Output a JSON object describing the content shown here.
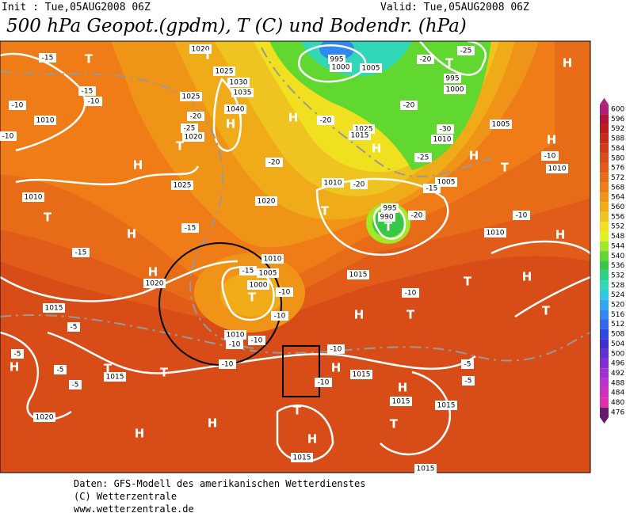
{
  "header": {
    "init": "Init : Tue,05AUG2008 06Z",
    "valid": "Valid: Tue,05AUG2008 06Z",
    "title": "500 hPa Geopot.(gpdm), T (C) und Bodendr. (hPa)"
  },
  "colorbar": [
    {
      "label": 600,
      "color": "#b0207a"
    },
    {
      "label": 596,
      "color": "#b01438"
    },
    {
      "label": 592,
      "color": "#c01c1c"
    },
    {
      "label": 588,
      "color": "#c82c18"
    },
    {
      "label": 584,
      "color": "#d03c18"
    },
    {
      "label": 580,
      "color": "#d84c18"
    },
    {
      "label": 576,
      "color": "#e05c18"
    },
    {
      "label": 572,
      "color": "#e86c18"
    },
    {
      "label": 568,
      "color": "#f07c18"
    },
    {
      "label": 564,
      "color": "#f09418"
    },
    {
      "label": 560,
      "color": "#f0ac18"
    },
    {
      "label": 556,
      "color": "#f0c420"
    },
    {
      "label": 552,
      "color": "#f0e020"
    },
    {
      "label": 548,
      "color": "#e0f020"
    },
    {
      "label": 544,
      "color": "#a0e828"
    },
    {
      "label": 540,
      "color": "#60d830"
    },
    {
      "label": 536,
      "color": "#38c848"
    },
    {
      "label": 532,
      "color": "#30d088"
    },
    {
      "label": 528,
      "color": "#30d8b8"
    },
    {
      "label": 524,
      "color": "#30c8e0"
    },
    {
      "label": 520,
      "color": "#30a8f0"
    },
    {
      "label": 516,
      "color": "#3088f0"
    },
    {
      "label": 512,
      "color": "#3068f0"
    },
    {
      "label": 508,
      "color": "#3048e0"
    },
    {
      "label": 504,
      "color": "#4030d0"
    },
    {
      "label": 500,
      "color": "#6030d0"
    },
    {
      "label": 496,
      "color": "#8030d0"
    },
    {
      "label": 492,
      "color": "#a030d0"
    },
    {
      "label": 488,
      "color": "#c030d0"
    },
    {
      "label": 484,
      "color": "#d030c0"
    },
    {
      "label": 480,
      "color": "#e030b0"
    },
    {
      "label": 476,
      "color": "#6a1a6a"
    }
  ],
  "map_labels": [
    "-15",
    "T",
    "1020",
    "T",
    "-15",
    "-10",
    "-10",
    "1010",
    "-10",
    "1025",
    "1030",
    "1035",
    "1025",
    "-20",
    "1040",
    "H",
    "-25",
    "1020",
    "T",
    "H",
    "1025",
    "-20",
    "H",
    "-20",
    "1025",
    "1015",
    "H",
    "995",
    "1000",
    "1005",
    "-20",
    "T",
    "-25",
    "995",
    "1000",
    "H",
    "-20",
    "1005",
    "-30",
    "1010",
    "H",
    "T",
    "-25",
    "H",
    "-10",
    "1010",
    "1010",
    "T",
    "1010",
    "-20",
    "1005",
    "-15",
    "T",
    "995",
    "990",
    "T",
    "-20",
    "1020",
    "-10",
    "-15",
    "H",
    "1010",
    "H",
    "-15",
    "H",
    "1020",
    "1010",
    "1005",
    "1000",
    "T",
    "-15",
    "-10",
    "1015",
    "H",
    "T",
    "-10",
    "T",
    "1015",
    "H",
    "T",
    "-10",
    "1010",
    "-10",
    "-10",
    "-5",
    "-5",
    "-10",
    "H",
    "1015",
    "1015",
    "T",
    "-5",
    "T",
    "-10",
    "-5",
    "-10",
    "H",
    "-5",
    "-5",
    "H",
    "1015",
    "T",
    "1015",
    "1020",
    "H",
    "T",
    "H",
    "H",
    "1015",
    "1015"
  ],
  "footer": [
    "Daten: GFS-Modell des amerikanischen Wetterdienstes",
    "(C) Wetterzentrale",
    "www.wetterzentrale.de"
  ]
}
